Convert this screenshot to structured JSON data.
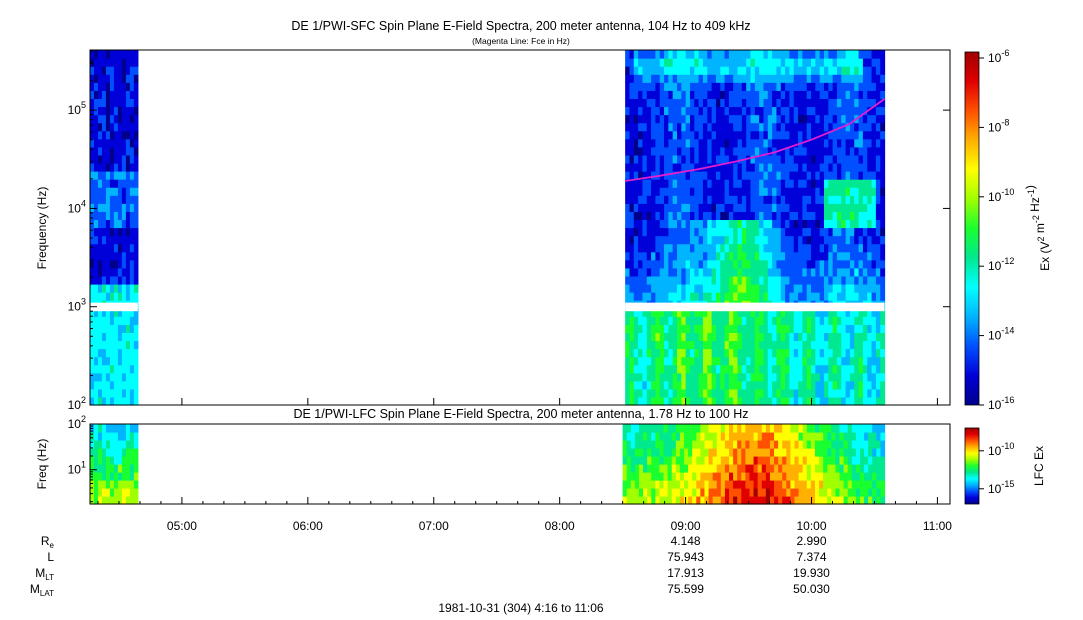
{
  "chart_data": [
    {
      "type": "heatmap",
      "title": "DE 1/PWI-SFC  Spin Plane E-Field Spectra, 200 meter antenna, 104 Hz to 409 kHz",
      "subtitle": "(Magenta Line: Fce in Hz)",
      "ylabel": "Frequency (Hz)",
      "yscale": "log",
      "ylim": [
        100,
        409000
      ],
      "y_ticks": [
        "10^2",
        "10^3",
        "10^4",
        "10^5"
      ],
      "xlim_hours": [
        4.27,
        11.1
      ],
      "colorbar": {
        "label": "Ex (V^2 m^-2 Hz^-1)",
        "scale": "log",
        "range": [
          "10^-16",
          "10^-6"
        ],
        "ticks": [
          "10^-6",
          "10^-8",
          "10^-10",
          "10^-12",
          "10^-14",
          "10^-16"
        ]
      },
      "data_intervals_hours": [
        [
          4.27,
          4.65
        ],
        [
          8.52,
          10.58
        ]
      ],
      "fce_line_hz": {
        "x_hours": [
          8.52,
          8.8,
          9.1,
          9.4,
          9.7,
          10.0,
          10.3,
          10.58
        ],
        "values": [
          19000,
          21500,
          25000,
          30000,
          37000,
          50000,
          72000,
          130000
        ]
      }
    },
    {
      "type": "heatmap",
      "title": "DE 1/PWI-LFC  Spin Plane E-Field Spectra, 200 meter antenna, 1.78 Hz to 100 Hz",
      "ylabel": "Freq (Hz)",
      "yscale": "log",
      "ylim": [
        1.78,
        100
      ],
      "y_ticks": [
        "10^2",
        "10^1"
      ],
      "colorbar": {
        "label": "LFC Ex",
        "scale": "log",
        "ticks": [
          "10^-10",
          "10^-15"
        ]
      },
      "data_intervals_hours": [
        [
          4.27,
          4.65
        ],
        [
          8.5,
          10.58
        ]
      ],
      "x_ticks": [
        "05:00",
        "06:00",
        "07:00",
        "08:00",
        "09:00",
        "10:00",
        "11:00"
      ],
      "x_tick_hours": [
        5,
        6,
        7,
        8,
        9,
        10,
        11
      ]
    }
  ],
  "ephemeris": {
    "labels": [
      {
        "main": "R",
        "sub": "e"
      },
      {
        "main": "L",
        "sub": ""
      },
      {
        "main": "M",
        "sub": "LT"
      },
      {
        "main": "M",
        "sub": "LAT"
      }
    ],
    "columns": [
      {
        "hour": 9,
        "values": [
          "4.148",
          "75.943",
          "17.913",
          "75.599"
        ]
      },
      {
        "hour": 10,
        "values": [
          "2.990",
          "7.374",
          "19.930",
          "50.030"
        ]
      }
    ]
  },
  "footer": "1981-10-31 (304) 4:16 to 11:06",
  "colors": {
    "fce_line": "#e020d0",
    "colormap": [
      "#00008c",
      "#0000d8",
      "#0050ff",
      "#00b4ff",
      "#00ffff",
      "#00e890",
      "#1aff30",
      "#a0ff00",
      "#ffff00",
      "#ffb000",
      "#ff5000",
      "#e00000",
      "#a00000"
    ]
  }
}
